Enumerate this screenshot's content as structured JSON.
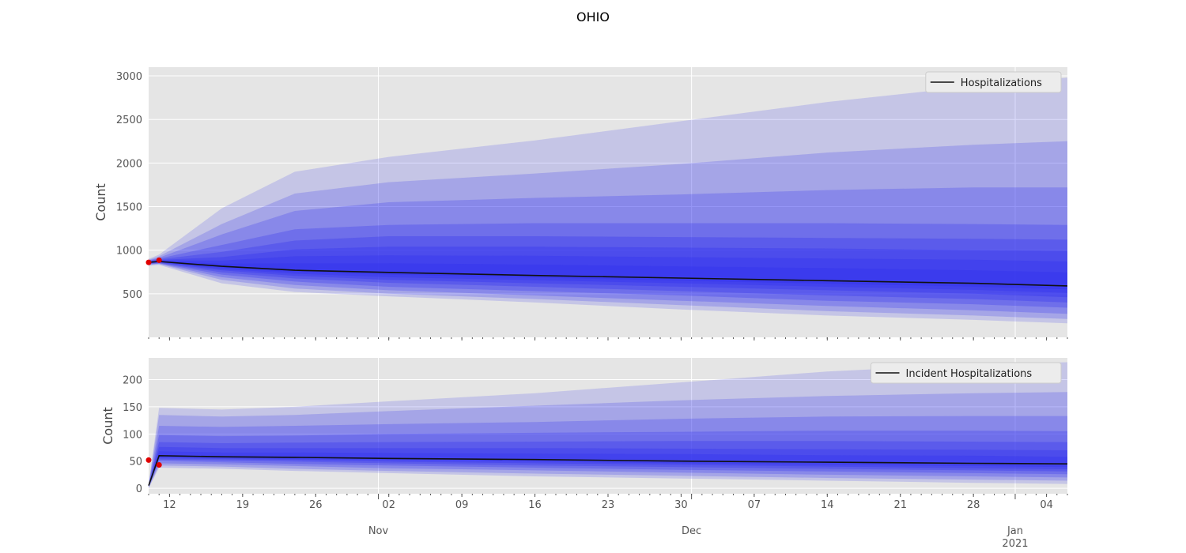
{
  "figure": {
    "title": "OHIO"
  },
  "colors": {
    "panel_bg": "#e5e5e5",
    "grid": "#ffffff",
    "band": "#3535ee",
    "median": "#111111",
    "observed": "#e00000"
  },
  "x_axis": {
    "start": "2020-10-10",
    "end": "2021-01-06",
    "day_ticks": [
      {
        "date": "2020-10-12",
        "label": "12"
      },
      {
        "date": "2020-10-19",
        "label": "19"
      },
      {
        "date": "2020-10-26",
        "label": "26"
      },
      {
        "date": "2020-11-02",
        "label": "02"
      },
      {
        "date": "2020-11-09",
        "label": "09"
      },
      {
        "date": "2020-11-16",
        "label": "16"
      },
      {
        "date": "2020-11-23",
        "label": "23"
      },
      {
        "date": "2020-11-30",
        "label": "30"
      },
      {
        "date": "2020-12-07",
        "label": "07"
      },
      {
        "date": "2020-12-14",
        "label": "14"
      },
      {
        "date": "2020-12-21",
        "label": "21"
      },
      {
        "date": "2020-12-28",
        "label": "28"
      },
      {
        "date": "2021-01-04",
        "label": "04"
      }
    ],
    "month_ticks": [
      {
        "date": "2020-11-01",
        "label": "Nov",
        "sublabel": ""
      },
      {
        "date": "2020-12-01",
        "label": "Dec",
        "sublabel": ""
      },
      {
        "date": "2021-01-01",
        "label": "Jan",
        "sublabel": "2021"
      }
    ]
  },
  "chart_data": [
    {
      "type": "area",
      "ylabel": "Count",
      "ylim": [
        0,
        3100
      ],
      "yticks": [
        500,
        1000,
        1500,
        2000,
        2500,
        3000
      ],
      "grid": true,
      "legend": {
        "placement": "top-right",
        "entries": [
          "Hospitalizations"
        ]
      },
      "x": [
        "2020-10-10",
        "2020-10-11",
        "2020-10-17",
        "2020-10-24",
        "2020-11-02",
        "2020-11-16",
        "2020-11-30",
        "2020-12-14",
        "2020-12-28",
        "2021-01-06"
      ],
      "median": [
        860,
        870,
        815,
        770,
        745,
        710,
        680,
        650,
        620,
        590
      ],
      "bands": [
        {
          "lower": [
            820,
            830,
            620,
            520,
            470,
            400,
            320,
            250,
            200,
            160
          ],
          "upper": [
            900,
            950,
            1480,
            1900,
            2070,
            2260,
            2480,
            2700,
            2880,
            2980
          ]
        },
        {
          "lower": [
            830,
            840,
            660,
            560,
            500,
            440,
            370,
            300,
            250,
            210
          ],
          "upper": [
            890,
            930,
            1300,
            1650,
            1780,
            1880,
            1990,
            2120,
            2210,
            2250
          ]
        },
        {
          "lower": [
            835,
            845,
            690,
            600,
            540,
            480,
            420,
            360,
            310,
            270
          ],
          "upper": [
            885,
            915,
            1180,
            1450,
            1550,
            1600,
            1640,
            1690,
            1720,
            1720
          ]
        },
        {
          "lower": [
            840,
            850,
            720,
            640,
            580,
            530,
            480,
            420,
            380,
            340
          ],
          "upper": [
            880,
            905,
            1060,
            1240,
            1290,
            1310,
            1310,
            1310,
            1300,
            1290
          ]
        },
        {
          "lower": [
            845,
            855,
            745,
            675,
            625,
            580,
            530,
            480,
            440,
            400
          ],
          "upper": [
            875,
            895,
            980,
            1110,
            1160,
            1160,
            1150,
            1140,
            1130,
            1120
          ]
        },
        {
          "lower": [
            850,
            858,
            770,
            705,
            660,
            620,
            580,
            540,
            500,
            460
          ],
          "upper": [
            870,
            888,
            920,
            1010,
            1040,
            1040,
            1030,
            1020,
            1000,
            990
          ]
        },
        {
          "lower": [
            852,
            862,
            785,
            730,
            690,
            655,
            620,
            580,
            545,
            510
          ],
          "upper": [
            868,
            880,
            880,
            930,
            940,
            935,
            920,
            905,
            890,
            870
          ]
        },
        {
          "lower": [
            855,
            865,
            800,
            750,
            720,
            685,
            650,
            615,
            580,
            550
          ],
          "upper": [
            866,
            876,
            845,
            850,
            850,
            835,
            815,
            795,
            770,
            745
          ]
        }
      ],
      "observed": [
        {
          "x": "2020-10-10",
          "y": 860
        },
        {
          "x": "2020-10-11",
          "y": 885
        }
      ]
    },
    {
      "type": "area",
      "ylabel": "Count",
      "ylim": [
        -10,
        240
      ],
      "yticks": [
        0,
        50,
        100,
        150,
        200
      ],
      "grid": true,
      "legend": {
        "placement": "top-right",
        "entries": [
          "Incident Hospitalizations"
        ]
      },
      "x": [
        "2020-10-10",
        "2020-10-11",
        "2020-10-17",
        "2020-10-24",
        "2020-11-02",
        "2020-11-16",
        "2020-11-30",
        "2020-12-14",
        "2020-12-28",
        "2021-01-06"
      ],
      "median": [
        5,
        60,
        58,
        57,
        55,
        53,
        50,
        48,
        46,
        45
      ],
      "bands": [
        {
          "lower": [
            0,
            38,
            36,
            32,
            28,
            22,
            18,
            14,
            10,
            8
          ],
          "upper": [
            8,
            148,
            145,
            150,
            160,
            175,
            195,
            215,
            228,
            232
          ]
        },
        {
          "lower": [
            1,
            42,
            40,
            36,
            32,
            27,
            23,
            19,
            16,
            14
          ],
          "upper": [
            7,
            135,
            132,
            135,
            142,
            152,
            162,
            170,
            175,
            177
          ]
        },
        {
          "lower": [
            2,
            46,
            44,
            41,
            37,
            33,
            29,
            25,
            22,
            20
          ],
          "upper": [
            7,
            115,
            113,
            115,
            118,
            122,
            128,
            132,
            133,
            133
          ]
        },
        {
          "lower": [
            2,
            50,
            48,
            45,
            42,
            38,
            34,
            31,
            28,
            26
          ],
          "upper": [
            6,
            98,
            96,
            97,
            100,
            102,
            104,
            106,
            106,
            105
          ]
        },
        {
          "lower": [
            3,
            53,
            51,
            49,
            46,
            42,
            39,
            36,
            33,
            31
          ],
          "upper": [
            6,
            85,
            83,
            84,
            85,
            86,
            87,
            87,
            86,
            85
          ]
        },
        {
          "lower": [
            3,
            55,
            54,
            52,
            49,
            46,
            43,
            40,
            37,
            35
          ],
          "upper": [
            6,
            76,
            74,
            74,
            74,
            74,
            73,
            72,
            71,
            70
          ]
        },
        {
          "lower": [
            4,
            57,
            56,
            54,
            52,
            49,
            46,
            43,
            41,
            39
          ],
          "upper": [
            6,
            68,
            66,
            66,
            65,
            64,
            63,
            61,
            60,
            58
          ]
        }
      ],
      "observed": [
        {
          "x": "2020-10-10",
          "y": 52
        },
        {
          "x": "2020-10-11",
          "y": 43
        }
      ]
    }
  ]
}
